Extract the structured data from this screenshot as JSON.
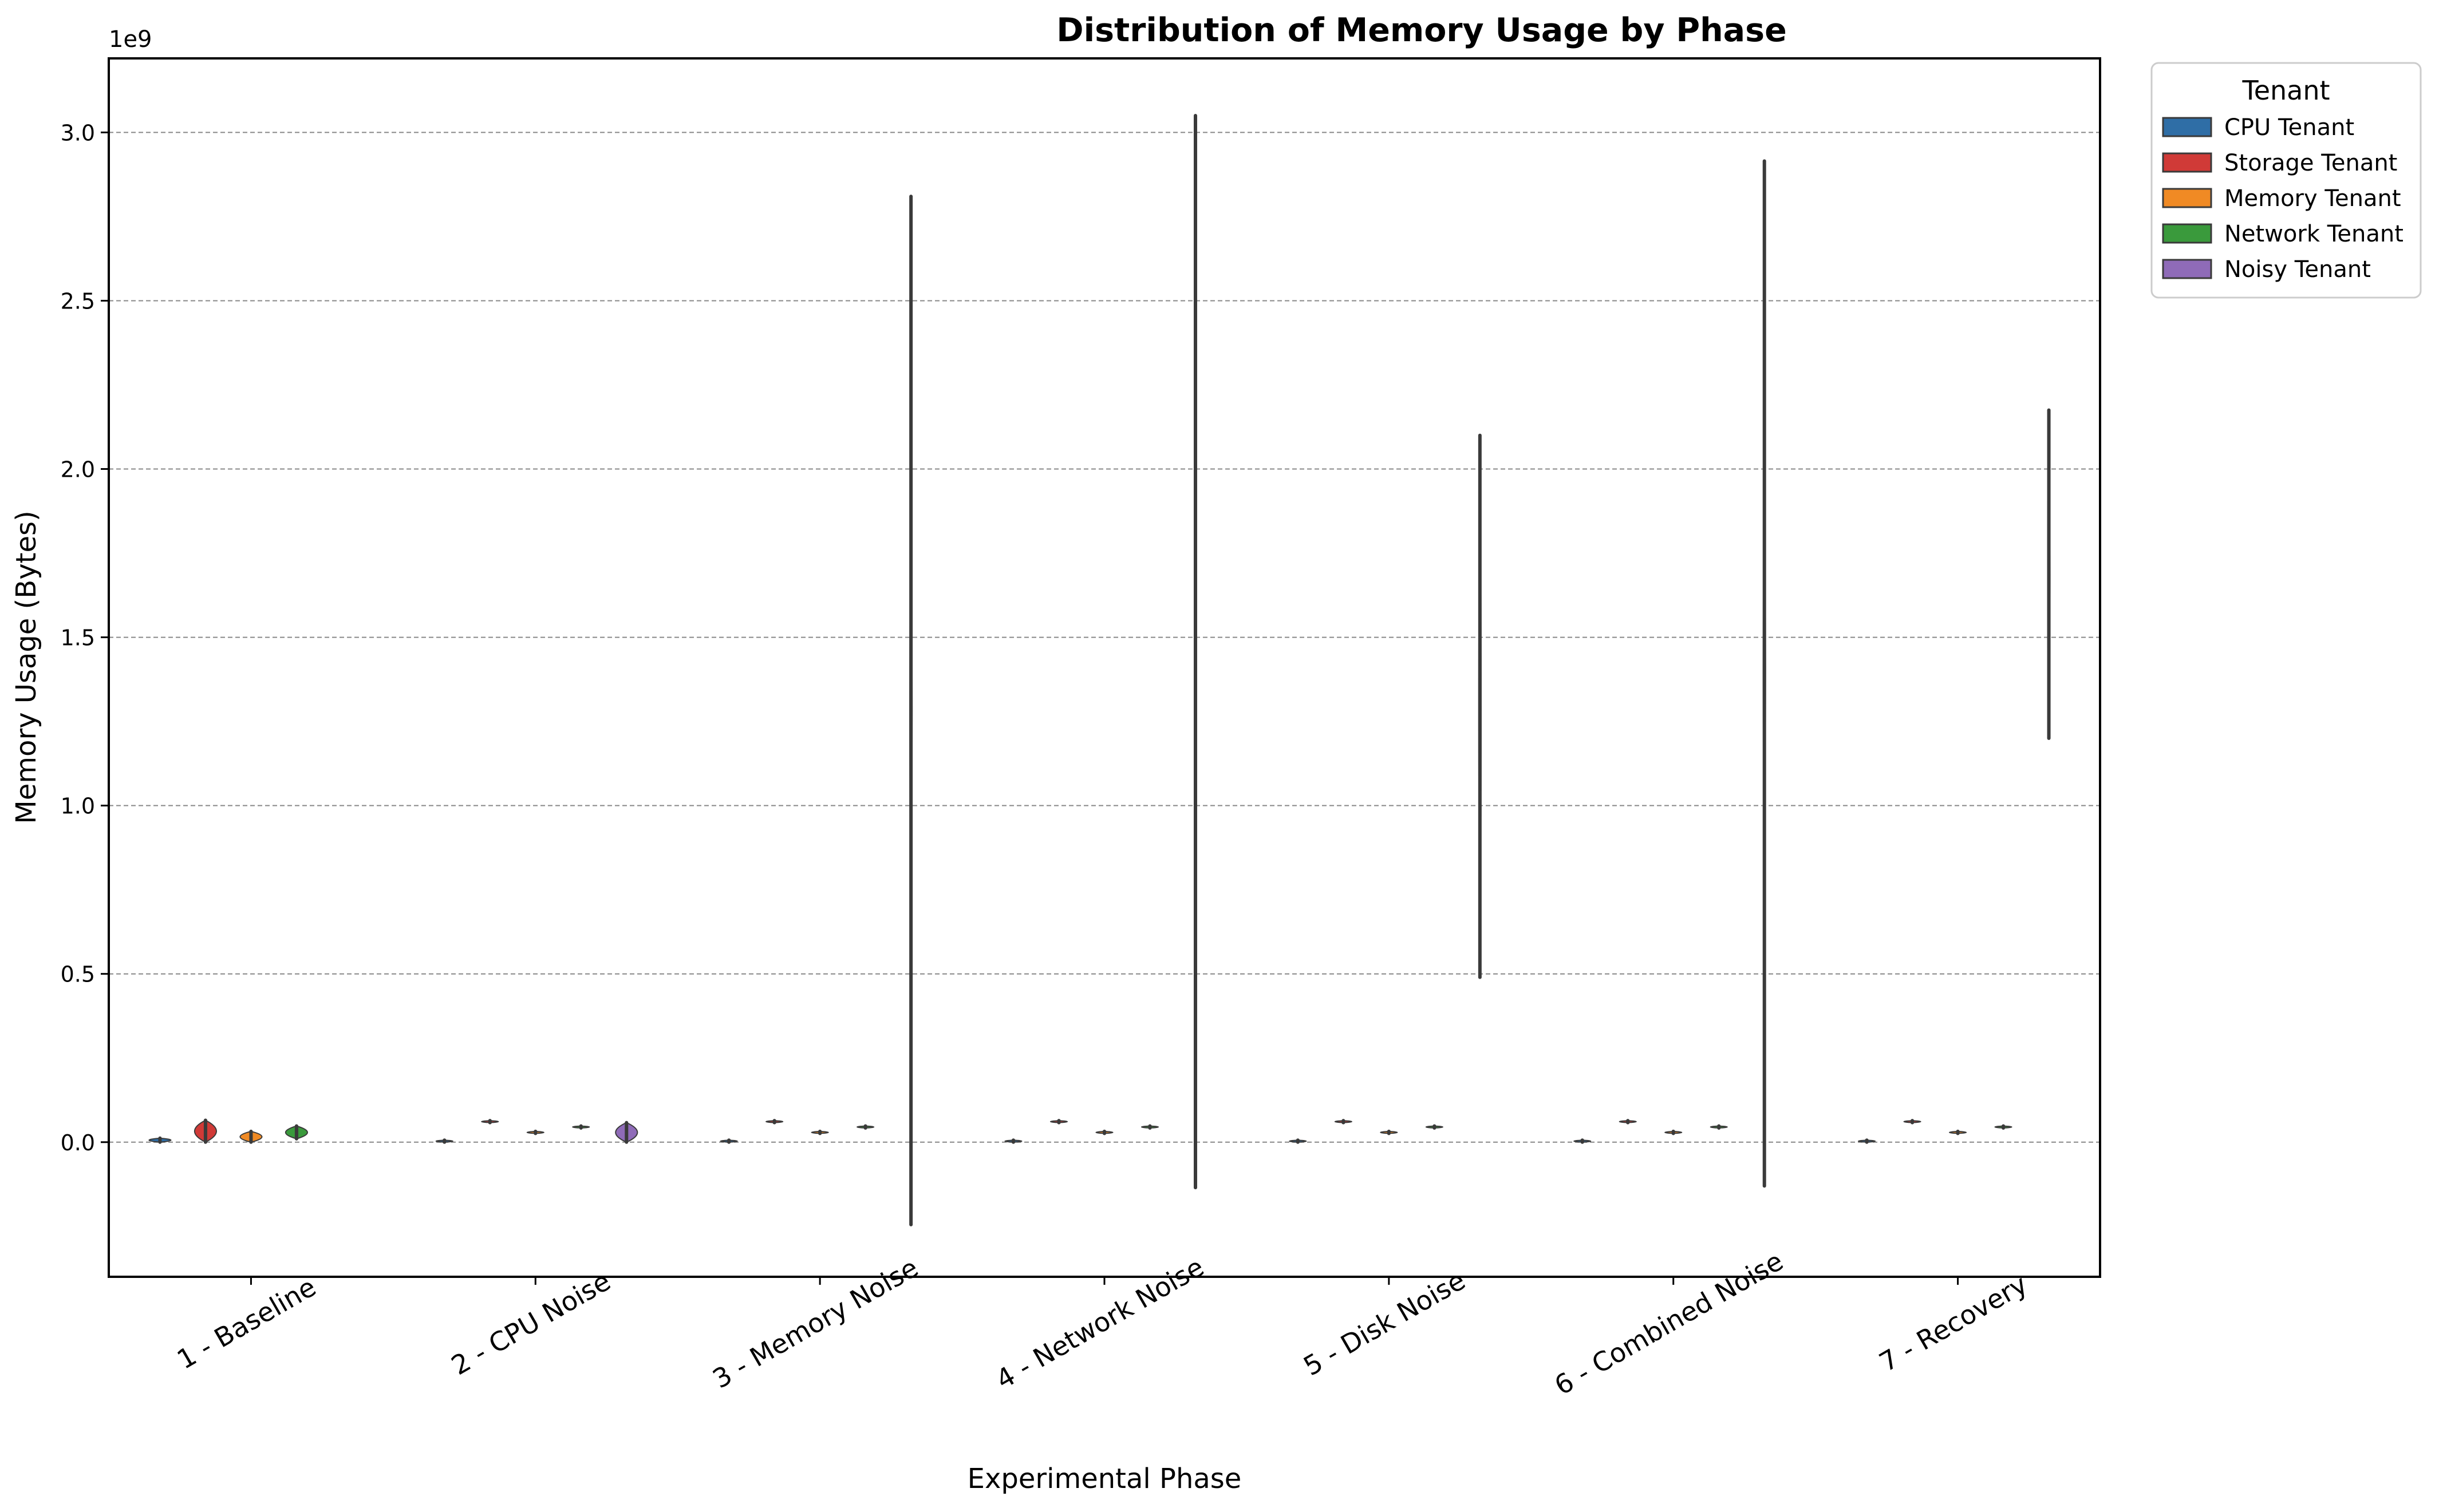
{
  "chart_data": {
    "type": "violin",
    "title": "Distribution of Memory Usage by Phase",
    "xlabel": "Experimental Phase",
    "ylabel": "Memory Usage (Bytes)",
    "y_offset_label": "1e9",
    "y_scale": 1000000000,
    "ylim": [
      -0.4,
      3.22
    ],
    "yticks": [
      0.0,
      0.5,
      1.0,
      1.5,
      2.0,
      2.5,
      3.0
    ],
    "ytick_labels": [
      "0.0",
      "0.5",
      "1.0",
      "1.5",
      "2.0",
      "2.5",
      "3.0"
    ],
    "grid": "horizontal-dashed",
    "categories": [
      "1 - Baseline",
      "2 - CPU Noise",
      "3 - Memory Noise",
      "4 - Network Noise",
      "5 - Disk Noise",
      "6 - Combined Noise",
      "7 - Recovery"
    ],
    "legend": {
      "title": "Tenant",
      "placement": "outside-top-right"
    },
    "series": [
      {
        "name": "CPU Tenant",
        "color": "#2f6ea6",
        "ranges": [
          [
            0.0,
            0.012
          ],
          [
            0.0,
            0.006
          ],
          [
            0.0,
            0.006
          ],
          [
            0.0,
            0.006
          ],
          [
            0.0,
            0.006
          ],
          [
            0.0,
            0.006
          ],
          [
            0.0,
            0.006
          ]
        ]
      },
      {
        "name": "Storage Tenant",
        "color": "#d03a37",
        "ranges": [
          [
            0.0,
            0.065
          ],
          [
            0.058,
            0.064
          ],
          [
            0.058,
            0.064
          ],
          [
            0.058,
            0.064
          ],
          [
            0.058,
            0.064
          ],
          [
            0.058,
            0.064
          ],
          [
            0.058,
            0.064
          ]
        ]
      },
      {
        "name": "Memory Tenant",
        "color": "#f08a24",
        "ranges": [
          [
            0.0,
            0.032
          ],
          [
            0.026,
            0.032
          ],
          [
            0.026,
            0.032
          ],
          [
            0.026,
            0.032
          ],
          [
            0.026,
            0.032
          ],
          [
            0.026,
            0.032
          ],
          [
            0.026,
            0.032
          ]
        ]
      },
      {
        "name": "Network Tenant",
        "color": "#3a9a3c",
        "ranges": [
          [
            0.01,
            0.048
          ],
          [
            0.042,
            0.048
          ],
          [
            0.042,
            0.048
          ],
          [
            0.042,
            0.048
          ],
          [
            0.042,
            0.048
          ],
          [
            0.042,
            0.048
          ],
          [
            0.042,
            0.048
          ]
        ]
      },
      {
        "name": "Noisy Tenant",
        "color": "#8f6bb8",
        "ranges": [
          null,
          [
            0.0,
            0.058
          ],
          [
            -0.245,
            2.81
          ],
          [
            -0.135,
            3.05
          ],
          [
            0.49,
            2.1
          ],
          [
            -0.13,
            2.915
          ],
          [
            1.2,
            2.175
          ]
        ]
      }
    ]
  }
}
